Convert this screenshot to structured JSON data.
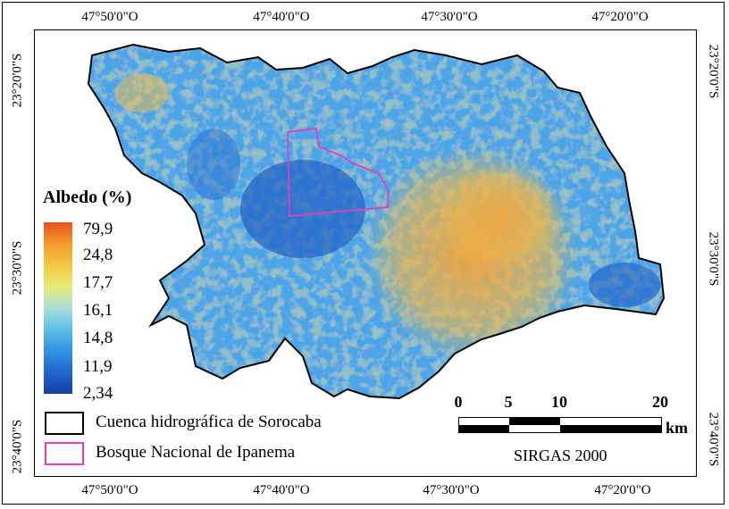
{
  "map": {
    "coords_top": [
      "47°50'0\"O",
      "47°40'0\"O",
      "47°30'0\"O",
      "47°20'0\"O"
    ],
    "coords_bottom": [
      "47°50'0\"O",
      "47°40'0\"O",
      "47°30'0\"O",
      "47°20'0\"O"
    ],
    "coords_left": [
      "23°20'0\"S",
      "23°30'0\"S",
      "23°40'0\"S"
    ],
    "coords_right": [
      "23°20'0\"S",
      "23°30'0\"S",
      "23°40'0\"S"
    ]
  },
  "legend": {
    "title": "Albedo (%)",
    "ramp_labels": [
      "79,9",
      "24,8",
      "17,7",
      "16,1",
      "14,8",
      "11,9",
      "2,34"
    ],
    "ramp_colors": [
      "#e8501a",
      "#f29a2a",
      "#f4cc45",
      "#e8ea7a",
      "#a9e0d8",
      "#5fc1ea",
      "#2f8fe0",
      "#1c5fc8",
      "#163fa5"
    ],
    "items": [
      {
        "label": "Cuenca hidrográfica de Sorocaba",
        "color": "#000000"
      },
      {
        "label": "Bosque Nacional de Ipanema",
        "color": "#e040c0"
      }
    ]
  },
  "scale": {
    "ticks": [
      "0",
      "5",
      "10",
      "20"
    ],
    "unit": "km"
  },
  "crs": "SIRGAS 2000"
}
